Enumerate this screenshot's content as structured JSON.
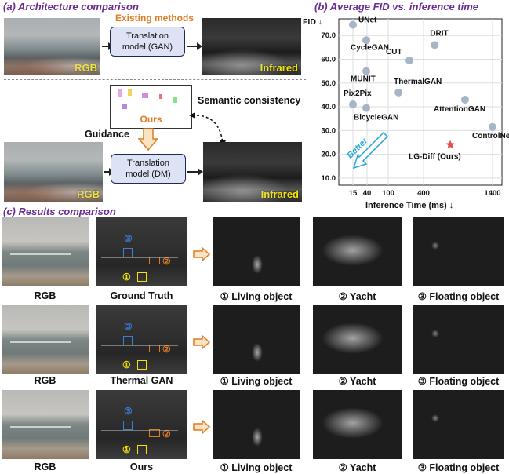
{
  "panel_a": {
    "title": "(a) Architecture comparison",
    "existing_label": "Existing methods",
    "top_model": "Translation model (GAN)",
    "rgb_label": "RGB",
    "infrared_label": "Infrared",
    "ours_label": "Ours",
    "semantic_label": "Semantic consistency",
    "guidance_label": "Guidance",
    "bottom_model": "Translation model (DM)",
    "bottom_rgb_label": "RGB",
    "bottom_infrared_label": "Infrared"
  },
  "panel_b": {
    "title": "(b) Average FID vs. inference time",
    "better_label": "Better",
    "chart_data": {
      "type": "scatter",
      "ylabel": "FID ↓",
      "xlabel": "Inference Time (ms) ↓",
      "x_tick_labels": [
        "15",
        "40",
        "100",
        "400",
        "1400"
      ],
      "y_tick_labels": [
        "70.0",
        "60.0",
        "50.0",
        "40.0",
        "30.0",
        "20.0",
        "10.0"
      ],
      "ylim": [
        7,
        77
      ],
      "grid": true,
      "points": [
        {
          "label": "UNet",
          "x": 15,
          "y": 74.5
        },
        {
          "label": "CycleGAN",
          "x": 38,
          "y": 68
        },
        {
          "label": "DRIT",
          "x": 490,
          "y": 66
        },
        {
          "label": "CUT",
          "x": 230,
          "y": 59.5
        },
        {
          "label": "MUNIT",
          "x": 38,
          "y": 55
        },
        {
          "label": "ThermalGAN",
          "x": 150,
          "y": 46
        },
        {
          "label": "Pix2Pix",
          "x": 15,
          "y": 41
        },
        {
          "label": "BicycleGAN",
          "x": 38,
          "y": 39.5
        },
        {
          "label": "AttentionGAN",
          "x": 850,
          "y": 43
        },
        {
          "label": "ControlNet",
          "x": 1400,
          "y": 31.5
        },
        {
          "label": "LG-Diff (Ours)",
          "x": 650,
          "y": 24,
          "highlight": true
        }
      ]
    }
  },
  "panel_c": {
    "title": "(c) Results comparison",
    "rows": [
      {
        "rgb": "RGB",
        "ir": "Ground Truth",
        "c1": "① Living object",
        "c2": "② Yacht",
        "c3": "③ Floating object"
      },
      {
        "rgb": "RGB",
        "ir": "Thermal GAN",
        "c1": "① Living object",
        "c2": "② Yacht",
        "c3": "③ Floating object"
      },
      {
        "rgb": "RGB",
        "ir": "Ours",
        "c1": "① Living object",
        "c2": "② Yacht",
        "c3": "③ Floating object"
      }
    ],
    "markers": {
      "m1": "①",
      "m2": "②",
      "m3": "③"
    }
  },
  "colors": {
    "title_purple": "#6a2c91",
    "existing_orange": "#e07b20",
    "photo_label_yellow": "#f5e500",
    "box_fill": "#dde3f4",
    "marker_blue": "#3b7dd8",
    "marker_orange": "#e07b20",
    "marker_yellow": "#f3e300",
    "better_blue": "#25a7d8",
    "ours_star": "#e05050"
  }
}
